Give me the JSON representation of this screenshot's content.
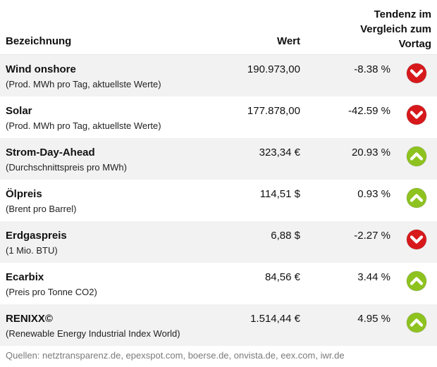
{
  "header": {
    "name_label": "Bezeichnung",
    "value_label": "Wert",
    "trend_line1": "Tendenz im",
    "trend_line2": "Vergleich zum",
    "trend_line3": "Vortag"
  },
  "rows": [
    {
      "title": "Wind onshore",
      "subtitle": "(Prod. MWh pro Tag, aktuellste Werte)",
      "value": "190.973,00",
      "change": "-8.38 %",
      "direction": "down",
      "icon": "arrow-down-circle-icon"
    },
    {
      "title": "Solar",
      "subtitle": "(Prod. MWh pro Tag, aktuellste Werte)",
      "value": "177.878,00",
      "change": "-42.59 %",
      "direction": "down",
      "icon": "arrow-down-circle-icon"
    },
    {
      "title": "Strom-Day-Ahead",
      "subtitle": "(Durchschnittspreis pro MWh)",
      "value": "323,34 €",
      "change": "20.93 %",
      "direction": "up",
      "icon": "arrow-up-circle-icon"
    },
    {
      "title": "Ölpreis",
      "subtitle": "(Brent pro Barrel)",
      "value": "114,51 $",
      "change": "0.93 %",
      "direction": "up",
      "icon": "arrow-up-circle-icon"
    },
    {
      "title": "Erdgaspreis",
      "subtitle": "(1 Mio. BTU)",
      "value": "6,88 $",
      "change": "-2.27 %",
      "direction": "down",
      "icon": "arrow-down-circle-icon"
    },
    {
      "title": "Ecarbix",
      "subtitle": "(Preis pro Tonne CO2)",
      "value": "84,56 €",
      "change": "3.44 %",
      "direction": "up",
      "icon": "arrow-up-circle-icon"
    },
    {
      "title": "RENIXX©",
      "subtitle": "(Renewable Energy Industrial Index World)",
      "value": "1.514,44 €",
      "change": "4.95 %",
      "direction": "up",
      "icon": "arrow-up-circle-icon"
    }
  ],
  "colors": {
    "down": "#d7191c",
    "up": "#8ec31f",
    "row_shade": "#f2f2f2"
  },
  "sources": "Quellen: netztransparenz.de, epexspot.com, boerse.de, onvista.de, eex.com, iwr.de"
}
